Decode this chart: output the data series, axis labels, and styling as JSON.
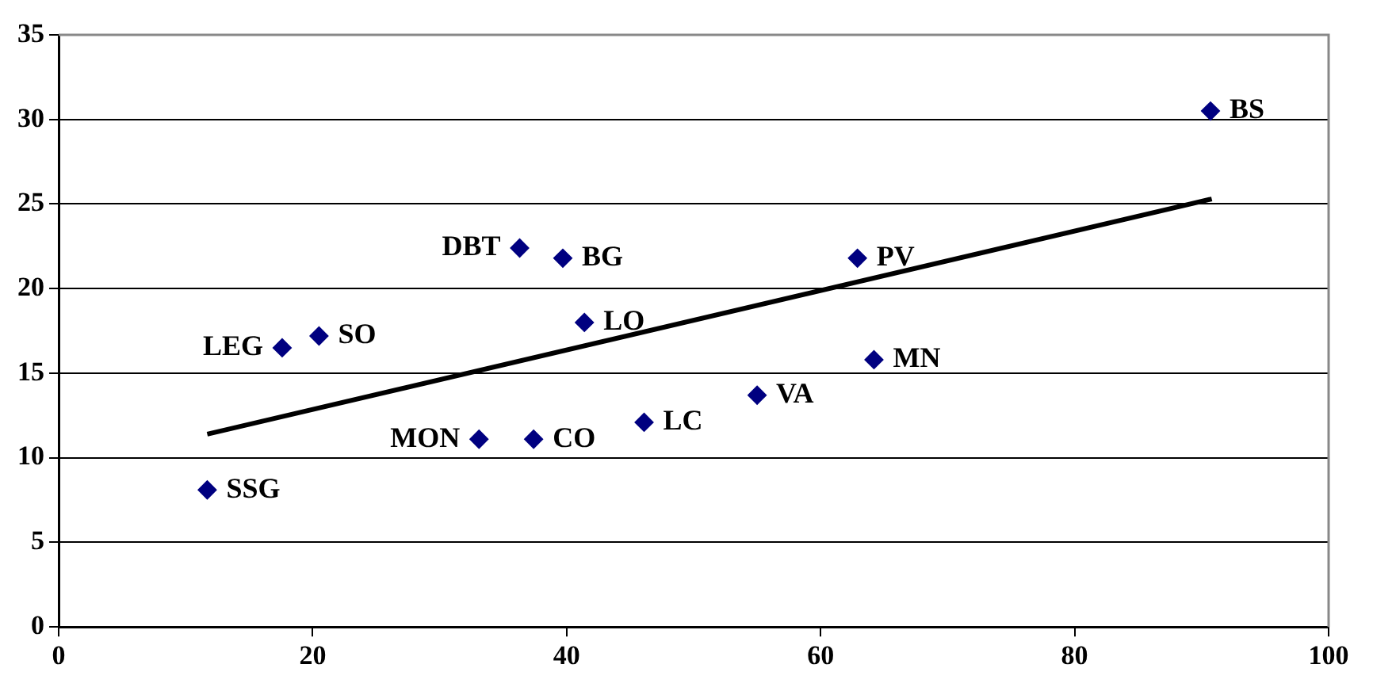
{
  "chart_data": {
    "type": "scatter",
    "xlim": [
      0,
      100
    ],
    "xticks": [
      0,
      20,
      40,
      60,
      80,
      100
    ],
    "ylim": [
      0,
      35
    ],
    "yticks": [
      0,
      5,
      10,
      15,
      20,
      25,
      30,
      35
    ],
    "grid": "y",
    "legend": false,
    "series": [
      {
        "type": "scatter",
        "marker": "diamond",
        "color": "#000080",
        "x": [
          11.7,
          17.6,
          20.5,
          33.1,
          36.3,
          37.4,
          39.7,
          41.4,
          46.1,
          55.0,
          62.9,
          64.2,
          90.7
        ],
        "values": [
          8.1,
          16.5,
          17.2,
          11.1,
          22.4,
          11.1,
          21.8,
          18.0,
          12.1,
          13.7,
          21.8,
          15.8,
          30.5
        ]
      },
      {
        "type": "line",
        "marker": "none",
        "color": "#000000",
        "x": [
          11.7,
          90.8
        ],
        "values": [
          11.4,
          25.3
        ]
      }
    ],
    "annotations": [
      {
        "text": "SSG",
        "x": 11.7,
        "y": 8.1
      },
      {
        "text": "LEG",
        "x": 17.6,
        "y": 16.5
      },
      {
        "text": "SO",
        "x": 20.5,
        "y": 17.2
      },
      {
        "text": "MON",
        "x": 33.1,
        "y": 11.1
      },
      {
        "text": "DBT",
        "x": 36.3,
        "y": 22.4
      },
      {
        "text": "CO",
        "x": 37.4,
        "y": 11.1
      },
      {
        "text": "BG",
        "x": 39.7,
        "y": 21.8
      },
      {
        "text": "LO",
        "x": 41.4,
        "y": 18.0
      },
      {
        "text": "LC",
        "x": 46.1,
        "y": 12.1
      },
      {
        "text": "VA",
        "x": 55.0,
        "y": 13.7
      },
      {
        "text": "PV",
        "x": 62.9,
        "y": 21.8
      },
      {
        "text": "MN",
        "x": 64.2,
        "y": 15.8
      },
      {
        "text": "BS",
        "x": 90.7,
        "y": 30.5
      }
    ]
  }
}
